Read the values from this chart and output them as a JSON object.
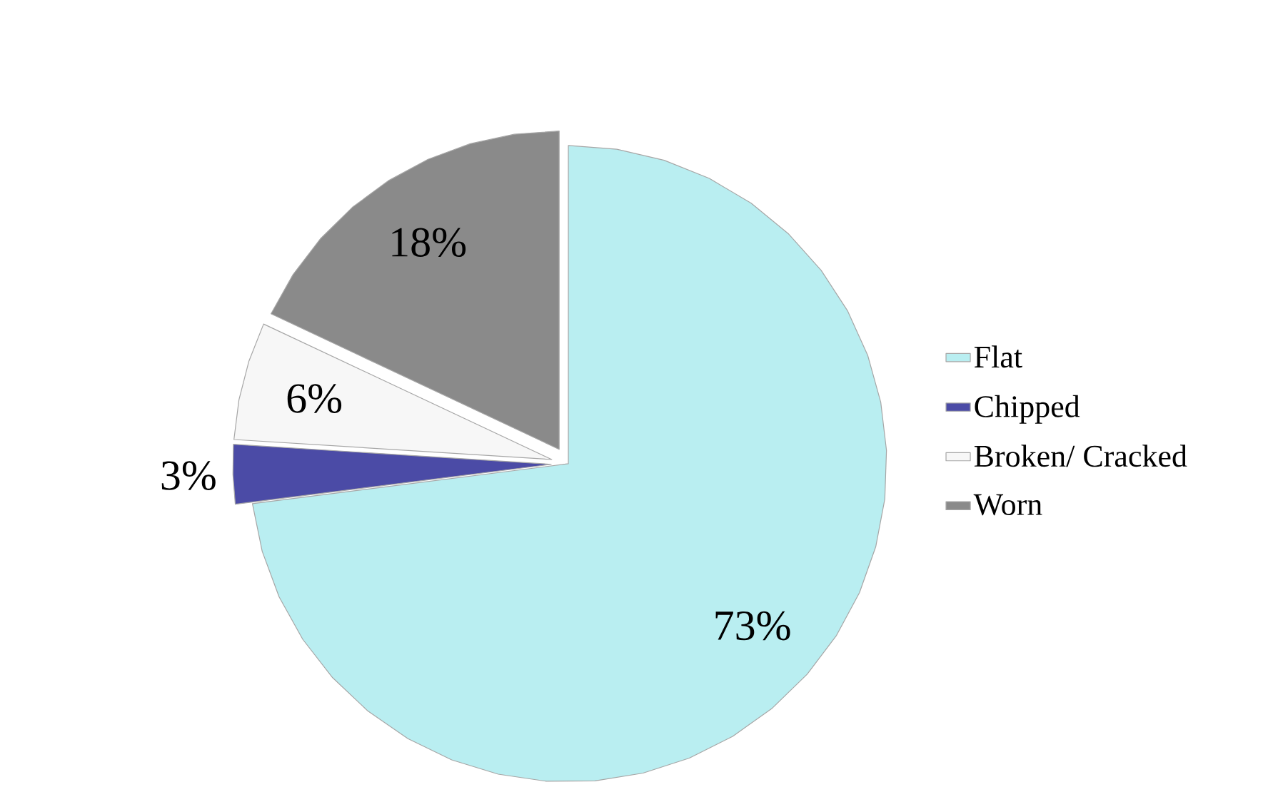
{
  "chart_data": {
    "type": "pie",
    "categories": [
      "Flat",
      "Chipped",
      "Broken/ Cracked",
      "Worn"
    ],
    "values": [
      73,
      3,
      6,
      18
    ],
    "colors": [
      "#b9eef1",
      "#4b4ba6",
      "#f7f7f7",
      "#8a8a8a"
    ],
    "value_labels": [
      "73%",
      "3%",
      "6%",
      "18%"
    ],
    "legend": "right"
  }
}
